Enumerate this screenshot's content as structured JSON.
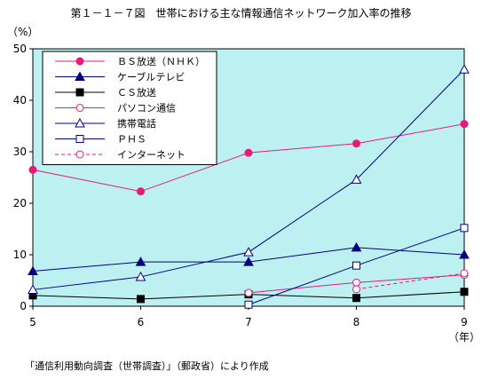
{
  "title": "第１－１－７図　世帯における主な情報通信ネットワーク加入率の推移",
  "source": "「通信利用動向調査（世帯調査）」（郵政省）により作成",
  "chart_data": {
    "type": "line",
    "title": "第１－１－７図　世帯における主な情報通信ネットワーク加入率の推移",
    "xlabel": "（年）",
    "ylabel": "（%）",
    "x": [
      5,
      6,
      7,
      8,
      9
    ],
    "xlim": [
      5,
      9
    ],
    "ylim": [
      0,
      50
    ],
    "yticks": [
      0,
      10,
      20,
      30,
      40,
      50
    ],
    "grid": false,
    "legend": "top-left",
    "background": "#bdf1f1",
    "series": [
      {
        "name": "ＢＳ放送（ＮＨＫ）",
        "color": "#e8197a",
        "marker": "circle-filled",
        "dash": false,
        "values": [
          26.5,
          22.3,
          29.8,
          31.6,
          35.4
        ]
      },
      {
        "name": "ケーブルテレビ",
        "color": "#000080",
        "marker": "triangle-filled",
        "dash": false,
        "values": [
          6.8,
          8.6,
          8.6,
          11.4,
          10.0
        ]
      },
      {
        "name": "ＣＳ放送",
        "color": "#000000",
        "marker": "square-filled",
        "dash": false,
        "values": [
          2.1,
          1.4,
          2.3,
          1.6,
          2.8
        ]
      },
      {
        "name": "パソコン通信",
        "color": "#e8197a",
        "marker": "circle-open",
        "dash": false,
        "values": [
          null,
          null,
          2.6,
          4.6,
          6.1
        ]
      },
      {
        "name": "携帯電話",
        "color": "#000080",
        "marker": "triangle-open",
        "dash": false,
        "values": [
          3.2,
          5.7,
          10.5,
          24.6,
          46.0
        ]
      },
      {
        "name": "ＰＨＳ",
        "color": "#000080",
        "marker": "square-open",
        "dash": false,
        "values": [
          null,
          null,
          0.3,
          7.9,
          15.2
        ]
      },
      {
        "name": "インターネット",
        "color": "#e8197a",
        "marker": "circle-open",
        "dash": true,
        "values": [
          null,
          null,
          null,
          3.3,
          6.4
        ]
      }
    ]
  }
}
